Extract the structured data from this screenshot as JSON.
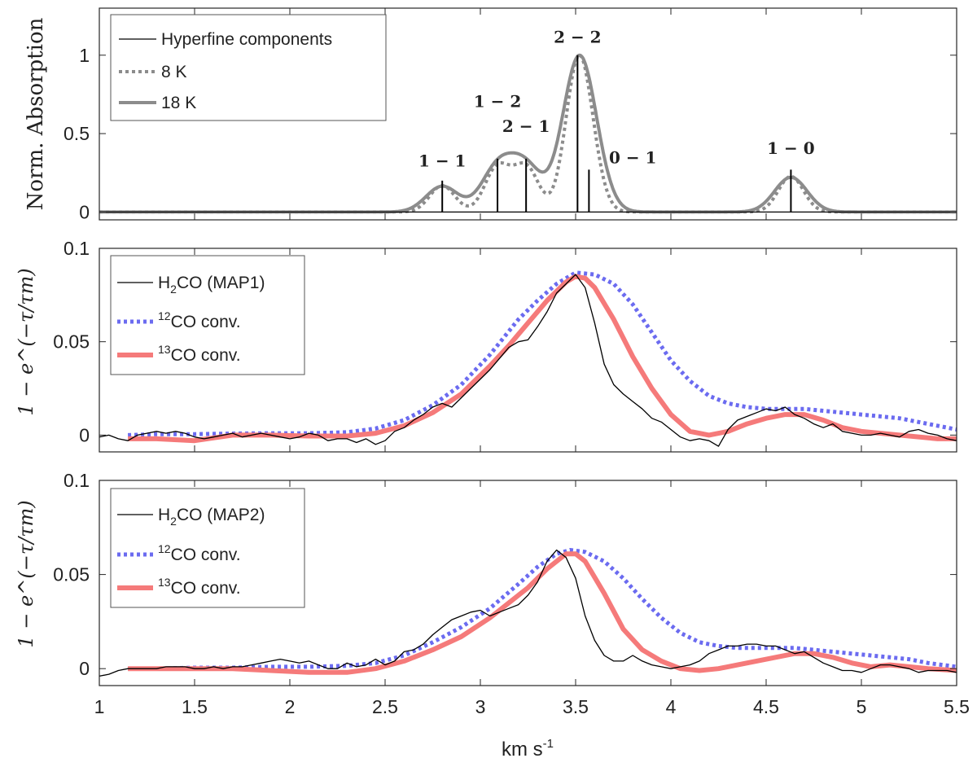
{
  "colors": {
    "axis": "#262626",
    "hyperfine": "#000000",
    "model": "#8c8c8c",
    "observed": "#000000",
    "co12": "#6b6bf0",
    "co13": "#f57a7a"
  },
  "x_axis_label": "km s-1",
  "x_axis_label_parts": {
    "base": "km s",
    "sup": "-1"
  },
  "x_ticks": [
    "1",
    "1.5",
    "2",
    "2.5",
    "3",
    "3.5",
    "4",
    "4.5",
    "5",
    "5.5"
  ],
  "chart_data": [
    {
      "type": "line",
      "panel": "top",
      "ylabel": "Norm. Absorption",
      "xlim": [
        1,
        5.5
      ],
      "ylim": [
        -0.05,
        1.3
      ],
      "y_ticks": [
        0,
        0.5,
        1
      ],
      "y_tick_labels": [
        "0",
        "0.5",
        "1"
      ],
      "legend": {
        "position": "top-left",
        "entries": [
          {
            "label": "Hyperfine components",
            "style": "solid-thin",
            "color_key": "hyperfine"
          },
          {
            "label": "8 K",
            "style": "dotted",
            "color_key": "model"
          },
          {
            "label": "18 K",
            "style": "solid-thick",
            "color_key": "model"
          }
        ]
      },
      "hyperfine_components": [
        {
          "label": "1 − 1",
          "x": 2.8,
          "height": 0.2
        },
        {
          "label": "1 − 2",
          "x": 3.09,
          "height": 0.34
        },
        {
          "label": "2 − 1",
          "x": 3.24,
          "height": 0.34
        },
        {
          "label": "2 − 2",
          "x": 3.51,
          "height": 1.0
        },
        {
          "label": "0 − 1",
          "x": 3.57,
          "height": 0.27
        },
        {
          "label": "1 − 0",
          "x": 4.63,
          "height": 0.27
        }
      ],
      "component_labels": [
        {
          "text": "1 − 1",
          "x": 2.8,
          "y": 0.29
        },
        {
          "text": "1 − 2",
          "x": 3.09,
          "y": 0.67
        },
        {
          "text": "2 − 1",
          "x": 3.24,
          "y": 0.51
        },
        {
          "text": "2 − 2",
          "x": 3.51,
          "y": 1.08
        },
        {
          "text": "0 − 1",
          "x": 3.8,
          "y": 0.31
        },
        {
          "text": "1 − 0",
          "x": 4.63,
          "y": 0.37
        }
      ],
      "series": [
        {
          "name": "8 K",
          "style": "dotted",
          "sigma": 0.066
        },
        {
          "name": "18 K",
          "style": "solid",
          "sigma": 0.085
        }
      ]
    },
    {
      "type": "line",
      "panel": "middle",
      "ylabel": "1 − e^(−τ/τm)",
      "xlim": [
        1,
        5.5
      ],
      "ylim": [
        -0.009,
        0.1
      ],
      "y_ticks": [
        0,
        0.05,
        0.1
      ],
      "y_tick_labels": [
        "0",
        "0.05",
        "0.1"
      ],
      "legend": {
        "position": "top-left",
        "entries": [
          {
            "label": "H2CO (MAP1)",
            "parts": {
              "pre": "H",
              "sub": "2",
              "post": "CO (MAP1)"
            },
            "style": "solid-thin",
            "color_key": "observed"
          },
          {
            "label": "12CO conv.",
            "parts": {
              "sup": "12",
              "post": "CO conv."
            },
            "style": "dotted",
            "color_key": "co12"
          },
          {
            "label": "13CO conv.",
            "parts": {
              "sup": "13",
              "post": "CO conv."
            },
            "style": "solid-thick",
            "color_key": "co13"
          }
        ]
      },
      "series": [
        {
          "name": "H2CO (MAP1)",
          "x": [
            1.0,
            1.05,
            1.1,
            1.15,
            1.2,
            1.25,
            1.3,
            1.35,
            1.4,
            1.45,
            1.5,
            1.55,
            1.6,
            1.65,
            1.7,
            1.75,
            1.8,
            1.85,
            1.9,
            1.95,
            2.0,
            2.05,
            2.1,
            2.15,
            2.2,
            2.25,
            2.3,
            2.35,
            2.4,
            2.45,
            2.5,
            2.55,
            2.6,
            2.65,
            2.7,
            2.75,
            2.8,
            2.85,
            2.9,
            2.95,
            3.0,
            3.05,
            3.1,
            3.15,
            3.2,
            3.25,
            3.3,
            3.35,
            3.4,
            3.45,
            3.5,
            3.55,
            3.6,
            3.65,
            3.7,
            3.75,
            3.8,
            3.85,
            3.9,
            3.95,
            4.0,
            4.05,
            4.1,
            4.15,
            4.2,
            4.25,
            4.3,
            4.35,
            4.4,
            4.45,
            4.5,
            4.55,
            4.6,
            4.65,
            4.7,
            4.75,
            4.8,
            4.85,
            4.9,
            4.95,
            5.0,
            5.05,
            5.1,
            5.15,
            5.2,
            5.25,
            5.3,
            5.35,
            5.4,
            5.45,
            5.5
          ],
          "y": [
            -0.001,
            0.0,
            -0.002,
            -0.003,
            0.0,
            0.001,
            0.002,
            0.001,
            0.002,
            0.001,
            -0.001,
            -0.002,
            -0.001,
            0.0,
            0.001,
            -0.001,
            0.0,
            0.001,
            0.0,
            -0.001,
            -0.002,
            -0.001,
            0.001,
            0.0,
            -0.003,
            -0.002,
            -0.002,
            -0.004,
            -0.002,
            -0.005,
            -0.003,
            0.002,
            0.004,
            0.008,
            0.011,
            0.015,
            0.017,
            0.015,
            0.02,
            0.025,
            0.03,
            0.035,
            0.041,
            0.047,
            0.05,
            0.051,
            0.058,
            0.066,
            0.076,
            0.081,
            0.086,
            0.079,
            0.06,
            0.038,
            0.027,
            0.022,
            0.018,
            0.014,
            0.009,
            0.007,
            0.003,
            -0.001,
            -0.003,
            -0.002,
            -0.003,
            -0.006,
            0.003,
            0.008,
            0.01,
            0.012,
            0.014,
            0.013,
            0.015,
            0.011,
            0.009,
            0.006,
            0.004,
            0.006,
            0.002,
            0.001,
            0.0,
            0.0,
            0.001,
            0.0,
            -0.001,
            0.002,
            0.003,
            0.001,
            0.0,
            -0.002,
            -0.003
          ]
        },
        {
          "name": "12CO conv.",
          "x": [
            1.15,
            1.3,
            1.5,
            1.7,
            1.9,
            2.1,
            2.3,
            2.45,
            2.6,
            2.75,
            2.9,
            3.05,
            3.2,
            3.3,
            3.4,
            3.5,
            3.6,
            3.7,
            3.8,
            3.9,
            4.0,
            4.1,
            4.2,
            4.3,
            4.4,
            4.5,
            4.6,
            4.7,
            4.8,
            4.9,
            5.0,
            5.1,
            5.2,
            5.3,
            5.4,
            5.5
          ],
          "y": [
            0.0,
            0.0005,
            0.0005,
            0.0008,
            0.001,
            0.001,
            0.0015,
            0.0035,
            0.008,
            0.016,
            0.027,
            0.043,
            0.062,
            0.072,
            0.081,
            0.087,
            0.086,
            0.081,
            0.07,
            0.055,
            0.04,
            0.029,
            0.021,
            0.017,
            0.015,
            0.014,
            0.014,
            0.014,
            0.013,
            0.012,
            0.011,
            0.01,
            0.009,
            0.007,
            0.005,
            0.003
          ]
        },
        {
          "name": "13CO conv.",
          "x": [
            1.15,
            1.3,
            1.5,
            1.7,
            1.9,
            2.1,
            2.3,
            2.45,
            2.6,
            2.75,
            2.9,
            3.05,
            3.15,
            3.25,
            3.35,
            3.45,
            3.5,
            3.55,
            3.6,
            3.7,
            3.8,
            3.9,
            4.0,
            4.1,
            4.2,
            4.3,
            4.4,
            4.5,
            4.6,
            4.7,
            4.8,
            4.9,
            5.0,
            5.2,
            5.4,
            5.5
          ],
          "y": [
            -0.002,
            -0.002,
            -0.003,
            0.0,
            0.0,
            -0.0005,
            -0.0005,
            0.001,
            0.005,
            0.012,
            0.022,
            0.037,
            0.048,
            0.06,
            0.072,
            0.082,
            0.085,
            0.084,
            0.079,
            0.062,
            0.042,
            0.025,
            0.011,
            0.002,
            0.0,
            0.002,
            0.006,
            0.009,
            0.011,
            0.011,
            0.008,
            0.004,
            0.002,
            0.0,
            -0.002,
            -0.002
          ]
        }
      ]
    },
    {
      "type": "line",
      "panel": "bottom",
      "ylabel": "1 − e^(−τ/τm)",
      "xlim": [
        1,
        5.5
      ],
      "ylim": [
        -0.009,
        0.1
      ],
      "y_ticks": [
        0,
        0.05,
        0.1
      ],
      "y_tick_labels": [
        "0",
        "0.05",
        "0.1"
      ],
      "legend": {
        "position": "top-left",
        "entries": [
          {
            "label": "H2CO (MAP2)",
            "parts": {
              "pre": "H",
              "sub": "2",
              "post": "CO (MAP2)"
            },
            "style": "solid-thin",
            "color_key": "observed"
          },
          {
            "label": "12CO conv.",
            "parts": {
              "sup": "12",
              "post": "CO conv."
            },
            "style": "dotted",
            "color_key": "co12"
          },
          {
            "label": "13CO conv.",
            "parts": {
              "sup": "13",
              "post": "CO conv."
            },
            "style": "solid-thick",
            "color_key": "co13"
          }
        ]
      },
      "series": [
        {
          "name": "H2CO (MAP2)",
          "x": [
            1.0,
            1.05,
            1.1,
            1.15,
            1.2,
            1.25,
            1.3,
            1.35,
            1.4,
            1.45,
            1.5,
            1.55,
            1.6,
            1.65,
            1.7,
            1.75,
            1.8,
            1.85,
            1.9,
            1.95,
            2.0,
            2.05,
            2.1,
            2.15,
            2.2,
            2.25,
            2.3,
            2.35,
            2.4,
            2.45,
            2.5,
            2.55,
            2.6,
            2.65,
            2.7,
            2.75,
            2.8,
            2.85,
            2.9,
            2.95,
            3.0,
            3.05,
            3.1,
            3.15,
            3.2,
            3.25,
            3.3,
            3.35,
            3.4,
            3.45,
            3.5,
            3.55,
            3.6,
            3.65,
            3.7,
            3.75,
            3.8,
            3.85,
            3.9,
            3.95,
            4.0,
            4.05,
            4.1,
            4.15,
            4.2,
            4.25,
            4.3,
            4.35,
            4.4,
            4.45,
            4.5,
            4.55,
            4.6,
            4.65,
            4.7,
            4.75,
            4.8,
            4.85,
            4.9,
            4.95,
            5.0,
            5.05,
            5.1,
            5.15,
            5.2,
            5.25,
            5.3,
            5.35,
            5.4,
            5.45,
            5.5
          ],
          "y": [
            -0.004,
            -0.003,
            -0.001,
            0.0,
            0.0,
            0.0,
            0.0,
            0.001,
            0.001,
            0.001,
            0.0,
            0.0,
            0.001,
            0.0,
            0.001,
            0.001,
            0.002,
            0.003,
            0.004,
            0.005,
            0.004,
            0.003,
            0.004,
            0.002,
            0.0,
            0.0,
            0.003,
            0.001,
            0.002,
            0.005,
            0.002,
            0.004,
            0.009,
            0.01,
            0.013,
            0.018,
            0.022,
            0.026,
            0.028,
            0.03,
            0.031,
            0.028,
            0.03,
            0.032,
            0.034,
            0.039,
            0.046,
            0.057,
            0.063,
            0.059,
            0.048,
            0.028,
            0.015,
            0.007,
            0.004,
            0.004,
            0.007,
            0.004,
            0.002,
            0.001,
            0.0,
            0.001,
            0.002,
            0.004,
            0.008,
            0.01,
            0.012,
            0.012,
            0.013,
            0.013,
            0.012,
            0.012,
            0.01,
            0.008,
            0.009,
            0.006,
            0.003,
            0.001,
            -0.001,
            -0.001,
            -0.002,
            0.0,
            0.002,
            0.002,
            0.001,
            0.0,
            -0.002,
            -0.001,
            -0.001,
            -0.001,
            -0.002
          ]
        },
        {
          "name": "12CO conv.",
          "x": [
            1.15,
            1.3,
            1.5,
            1.7,
            1.9,
            2.1,
            2.3,
            2.45,
            2.6,
            2.75,
            2.9,
            3.05,
            3.2,
            3.3,
            3.4,
            3.47,
            3.55,
            3.65,
            3.75,
            3.85,
            3.95,
            4.05,
            4.15,
            4.25,
            4.35,
            4.45,
            4.55,
            4.65,
            4.75,
            4.85,
            4.95,
            5.05,
            5.15,
            5.25,
            5.35,
            5.5
          ],
          "y": [
            0.0,
            0.0,
            0.0005,
            0.0005,
            0.001,
            0.001,
            0.0015,
            0.003,
            0.007,
            0.014,
            0.022,
            0.032,
            0.045,
            0.054,
            0.061,
            0.063,
            0.062,
            0.057,
            0.048,
            0.037,
            0.027,
            0.019,
            0.014,
            0.012,
            0.011,
            0.011,
            0.011,
            0.011,
            0.01,
            0.009,
            0.008,
            0.007,
            0.006,
            0.005,
            0.003,
            0.001
          ]
        },
        {
          "name": "13CO conv.",
          "x": [
            1.15,
            1.3,
            1.5,
            1.7,
            1.9,
            2.1,
            2.3,
            2.45,
            2.6,
            2.75,
            2.9,
            3.05,
            3.15,
            3.25,
            3.35,
            3.45,
            3.5,
            3.55,
            3.65,
            3.75,
            3.85,
            3.95,
            4.05,
            4.15,
            4.25,
            4.35,
            4.45,
            4.55,
            4.65,
            4.75,
            4.85,
            4.95,
            5.05,
            5.15,
            5.25,
            5.35,
            5.5
          ],
          "y": [
            0.0,
            0.0,
            0.0,
            0.0,
            -0.001,
            -0.002,
            -0.002,
            0.0,
            0.004,
            0.01,
            0.017,
            0.027,
            0.035,
            0.043,
            0.053,
            0.061,
            0.061,
            0.057,
            0.04,
            0.021,
            0.01,
            0.004,
            0.0,
            -0.001,
            0.0,
            0.002,
            0.004,
            0.006,
            0.008,
            0.008,
            0.006,
            0.003,
            0.001,
            0.002,
            0.001,
            0.0,
            -0.001
          ]
        }
      ]
    }
  ]
}
